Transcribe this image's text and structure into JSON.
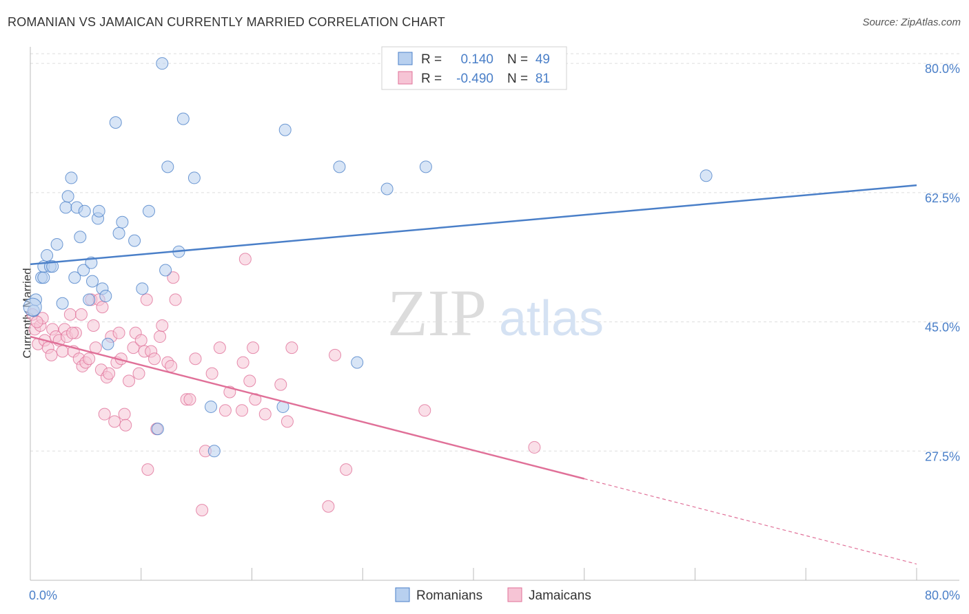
{
  "header": {
    "title": "ROMANIAN VS JAMAICAN CURRENTLY MARRIED CORRELATION CHART",
    "source": "Source: ZipAtlas.com"
  },
  "watermark": {
    "zip": "ZIP",
    "atlas": "atlas"
  },
  "colors": {
    "romanian": "#4a7fc8",
    "romanian_fill": "#b8d0ef",
    "jamaican": "#e07098",
    "jamaican_fill": "#f6c4d5",
    "axis_text": "#4a7fc8",
    "grid": "#dddddd"
  },
  "chart_data": {
    "type": "scatter",
    "title": "ROMANIAN VS JAMAICAN CURRENTLY MARRIED CORRELATION CHART",
    "xlabel": "",
    "ylabel": "Currently Married",
    "xlim": [
      0,
      80
    ],
    "ylim": [
      10,
      83
    ],
    "x_tick_labels": [
      {
        "value": 0,
        "label": "0.0%"
      },
      {
        "value": 80,
        "label": "80.0%"
      }
    ],
    "y_tick_labels": [
      {
        "value": 80,
        "label": "80.0%"
      },
      {
        "value": 62.5,
        "label": "62.5%"
      },
      {
        "value": 45,
        "label": "45.0%"
      },
      {
        "value": 27.5,
        "label": "27.5%"
      }
    ],
    "legend_stats": [
      {
        "series": "Romanians",
        "r_label": "R =",
        "r_value": "0.140",
        "n_label": "N =",
        "n_value": "49"
      },
      {
        "series": "Jamaicans",
        "r_label": "R =",
        "r_value": "-0.490",
        "n_label": "N =",
        "n_value": "81"
      }
    ],
    "series": [
      {
        "name": "Romanians",
        "trend": {
          "x0": 0,
          "y0": 52.8,
          "x1": 80,
          "y1": 63.5,
          "solid_until": 80
        },
        "points": [
          [
            0.3,
            46.5
          ],
          [
            0.5,
            48
          ],
          [
            1.0,
            51
          ],
          [
            1.2,
            51
          ],
          [
            1.2,
            52.5
          ],
          [
            1.5,
            54
          ],
          [
            1.8,
            52.5
          ],
          [
            2.0,
            52.5
          ],
          [
            2.4,
            55.5
          ],
          [
            2.9,
            47.5
          ],
          [
            3.2,
            60.5
          ],
          [
            3.4,
            62
          ],
          [
            3.7,
            64.5
          ],
          [
            4.0,
            51
          ],
          [
            4.2,
            60.5
          ],
          [
            4.5,
            56.5
          ],
          [
            4.8,
            52
          ],
          [
            4.9,
            60
          ],
          [
            5.3,
            48
          ],
          [
            5.5,
            53
          ],
          [
            5.6,
            50.5
          ],
          [
            6.1,
            59
          ],
          [
            6.2,
            60
          ],
          [
            6.5,
            49.5
          ],
          [
            6.8,
            48.5
          ],
          [
            7.0,
            42
          ],
          [
            7.7,
            72.0
          ],
          [
            8.0,
            57
          ],
          [
            8.3,
            58.5
          ],
          [
            9.4,
            56
          ],
          [
            10.1,
            49.5
          ],
          [
            10.7,
            60.0
          ],
          [
            11.5,
            30.5
          ],
          [
            11.9,
            80
          ],
          [
            12.2,
            52
          ],
          [
            12.4,
            66
          ],
          [
            13.4,
            54.5
          ],
          [
            13.8,
            72.5
          ],
          [
            14.8,
            64.5
          ],
          [
            16.3,
            33.5
          ],
          [
            16.6,
            27.5
          ],
          [
            22.8,
            33.5
          ],
          [
            23.0,
            71.0
          ],
          [
            27.9,
            66
          ],
          [
            29.5,
            39.5
          ],
          [
            32.2,
            63
          ],
          [
            35.7,
            66.0
          ],
          [
            61.0,
            64.8
          ],
          [
            0.2,
            47
          ]
        ]
      },
      {
        "name": "Jamaicans",
        "trend": {
          "x0": 0,
          "y0": 43.0,
          "x1": 80,
          "y1": 12.2,
          "solid_until": 50
        },
        "points": [
          [
            0.2,
            46
          ],
          [
            0.4,
            44
          ],
          [
            0.7,
            42
          ],
          [
            0.9,
            44.5
          ],
          [
            1.1,
            45.5
          ],
          [
            1.3,
            42.5
          ],
          [
            1.6,
            41.5
          ],
          [
            2.0,
            44
          ],
          [
            2.3,
            43
          ],
          [
            2.6,
            42.5
          ],
          [
            2.9,
            41
          ],
          [
            3.1,
            44
          ],
          [
            3.3,
            43
          ],
          [
            3.6,
            46
          ],
          [
            3.9,
            41
          ],
          [
            4.1,
            43.5
          ],
          [
            4.4,
            40
          ],
          [
            4.6,
            46
          ],
          [
            4.7,
            39
          ],
          [
            5.0,
            39.5
          ],
          [
            5.3,
            40
          ],
          [
            5.5,
            48
          ],
          [
            5.7,
            44.5
          ],
          [
            5.9,
            41.5
          ],
          [
            6.2,
            48
          ],
          [
            6.4,
            38.5
          ],
          [
            6.5,
            47
          ],
          [
            6.7,
            32.5
          ],
          [
            6.9,
            37.5
          ],
          [
            7.1,
            38
          ],
          [
            7.3,
            43
          ],
          [
            7.6,
            31.5
          ],
          [
            7.8,
            39.5
          ],
          [
            8.0,
            43.5
          ],
          [
            8.2,
            40
          ],
          [
            8.5,
            32.5
          ],
          [
            8.6,
            31
          ],
          [
            8.9,
            37
          ],
          [
            9.3,
            41.5
          ],
          [
            9.5,
            43.5
          ],
          [
            9.8,
            38
          ],
          [
            10.0,
            42.5
          ],
          [
            10.3,
            41
          ],
          [
            10.5,
            48
          ],
          [
            10.6,
            25
          ],
          [
            10.9,
            41
          ],
          [
            11.2,
            40
          ],
          [
            11.4,
            30.5
          ],
          [
            11.7,
            43
          ],
          [
            11.9,
            44.5
          ],
          [
            12.4,
            39.5
          ],
          [
            12.7,
            39
          ],
          [
            12.9,
            51
          ],
          [
            13.1,
            48
          ],
          [
            14.1,
            34.5
          ],
          [
            14.4,
            34.5
          ],
          [
            14.9,
            40
          ],
          [
            15.5,
            19.5
          ],
          [
            15.8,
            27.5
          ],
          [
            16.4,
            38
          ],
          [
            17.1,
            41.5
          ],
          [
            17.6,
            33
          ],
          [
            18.0,
            35.5
          ],
          [
            19.1,
            33
          ],
          [
            19.2,
            39.5
          ],
          [
            19.4,
            53.5
          ],
          [
            19.8,
            37
          ],
          [
            20.1,
            41.5
          ],
          [
            20.3,
            34.5
          ],
          [
            21.2,
            32.5
          ],
          [
            22.6,
            36.5
          ],
          [
            23.2,
            31.5
          ],
          [
            23.6,
            41.5
          ],
          [
            26.9,
            20
          ],
          [
            27.5,
            40.5
          ],
          [
            28.5,
            25
          ],
          [
            35.6,
            33
          ],
          [
            45.5,
            28
          ],
          [
            0.6,
            45
          ],
          [
            1.9,
            40.5
          ],
          [
            3.8,
            43.5
          ]
        ]
      }
    ]
  }
}
